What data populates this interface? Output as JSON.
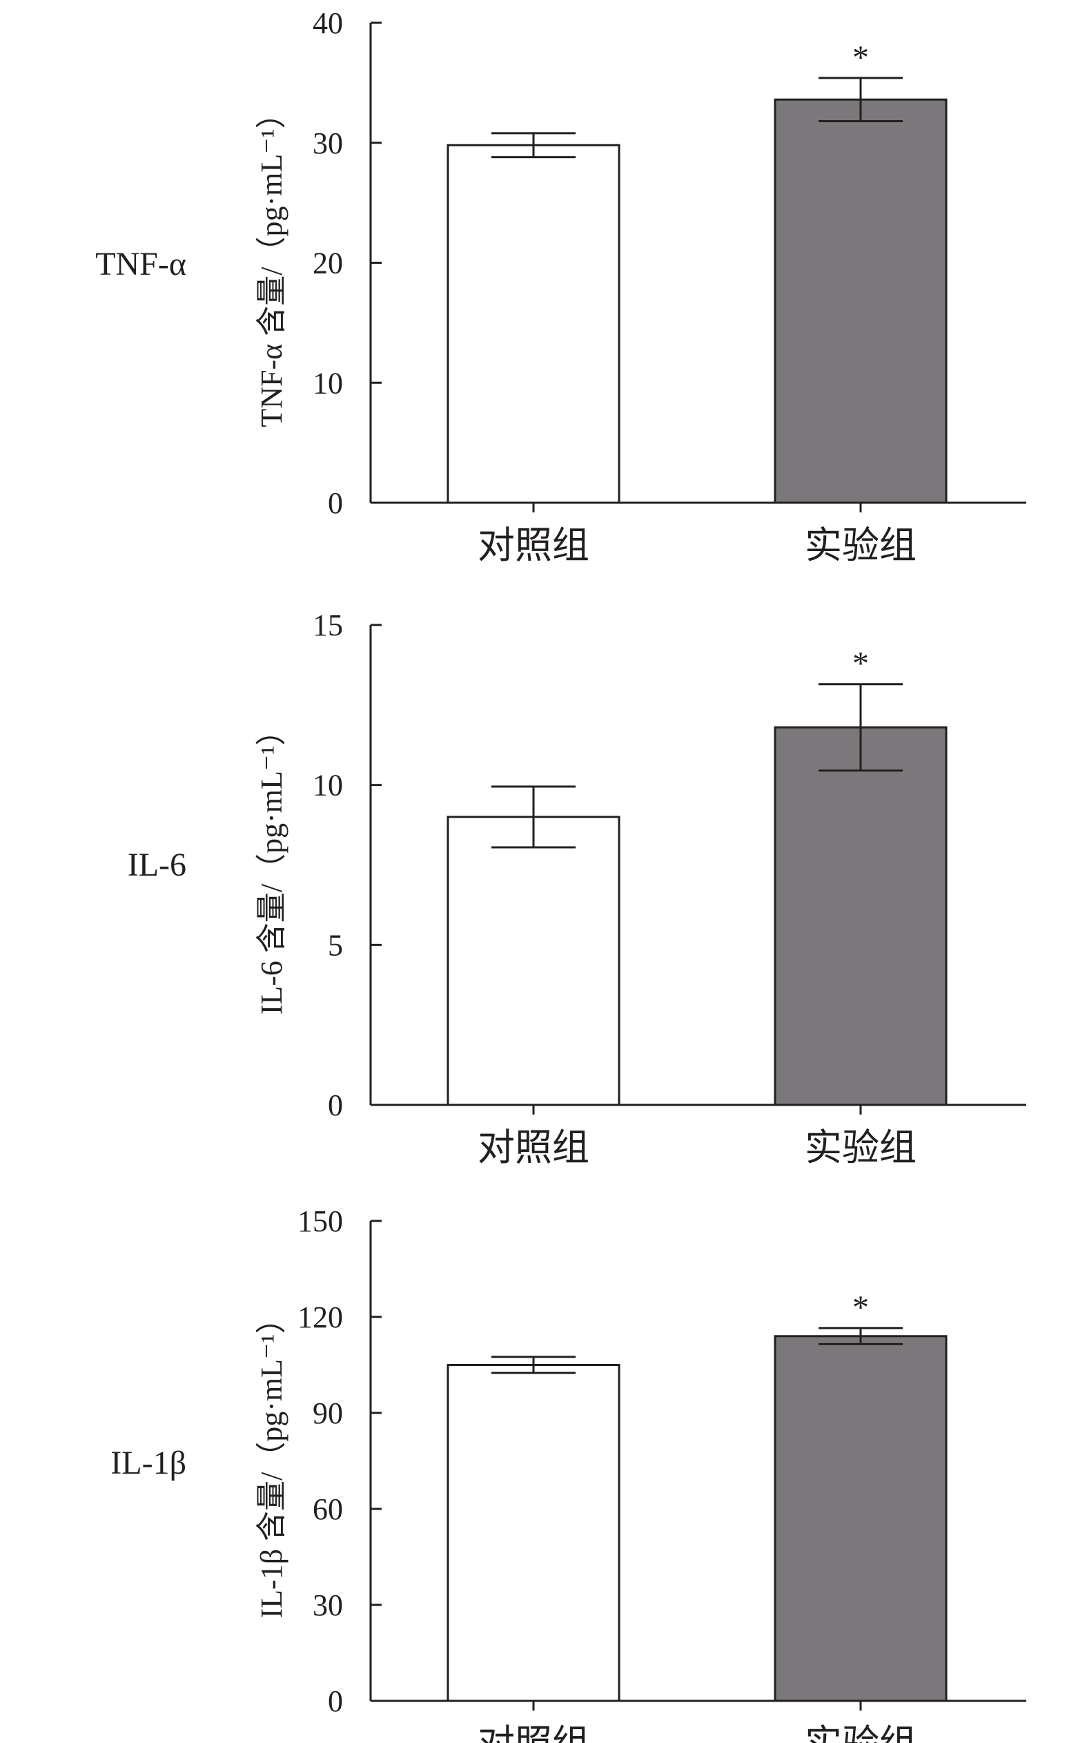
{
  "chart_data": [
    {
      "type": "bar",
      "side_label": "TNF-α",
      "ylabel": "TNF-α 含量/（pg·mL⁻¹）",
      "ylabel_sup": "−1",
      "categories": [
        "对照组",
        "实验组"
      ],
      "values": [
        29.8,
        33.6
      ],
      "errors": [
        1.0,
        1.8
      ],
      "significance": [
        "",
        "*"
      ],
      "bar_colors": [
        "#ffffff",
        "#7a787a"
      ],
      "ylim": [
        0,
        40
      ],
      "yticks": [
        0,
        10,
        20,
        30,
        40
      ],
      "grid": false
    },
    {
      "type": "bar",
      "side_label": "IL-6",
      "ylabel": "IL-6 含量/（pg·mL⁻¹）",
      "ylabel_sup": "−1",
      "categories": [
        "对照组",
        "实验组"
      ],
      "values": [
        9.0,
        11.8
      ],
      "errors": [
        0.95,
        1.35
      ],
      "significance": [
        "",
        "*"
      ],
      "bar_colors": [
        "#ffffff",
        "#7a787a"
      ],
      "ylim": [
        0,
        15
      ],
      "yticks": [
        0,
        5,
        10,
        15
      ],
      "grid": false
    },
    {
      "type": "bar",
      "side_label": "IL-1β",
      "ylabel": "IL-1β 含量/（pg·mL⁻¹）",
      "ylabel_sup": "−1",
      "categories": [
        "对照组",
        "实验组"
      ],
      "values": [
        105,
        114
      ],
      "errors": [
        2.5,
        2.5
      ],
      "significance": [
        "",
        "*"
      ],
      "bar_colors": [
        "#ffffff",
        "#7a787a"
      ],
      "ylim": [
        0,
        150
      ],
      "yticks": [
        0,
        30,
        60,
        90,
        120,
        150
      ],
      "grid": false
    }
  ]
}
